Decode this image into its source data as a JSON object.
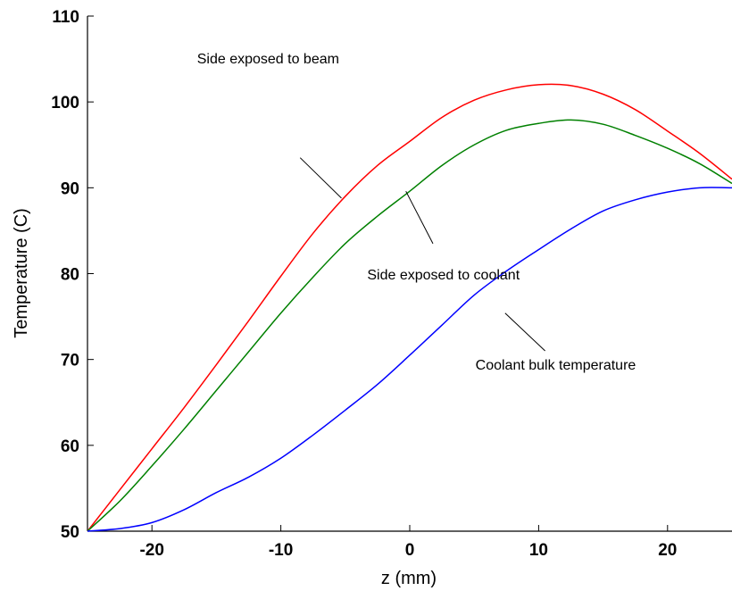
{
  "chart_data": {
    "type": "line",
    "title": "",
    "xlabel": "z (mm)",
    "ylabel": "Temperature (C)",
    "xlim": [
      -25,
      25
    ],
    "ylim": [
      50,
      110
    ],
    "xticks": [
      -20,
      -10,
      0,
      10,
      20
    ],
    "yticks": [
      50,
      60,
      70,
      80,
      90,
      100,
      110
    ],
    "grid": false,
    "legend": "none",
    "series": [
      {
        "color": "#ff0000",
        "x": [
          -25,
          -22.5,
          -20,
          -17.5,
          -15,
          -12.5,
          -10,
          -7.5,
          -5,
          -2.5,
          0,
          2.5,
          5,
          7.5,
          10,
          12.5,
          15,
          17.5,
          20,
          22.5,
          25
        ],
        "y": [
          50.0,
          54.8,
          59.6,
          64.4,
          69.4,
          74.5,
          79.7,
          84.7,
          89.0,
          92.6,
          95.4,
          98.2,
          100.2,
          101.4,
          102.0,
          101.9,
          100.9,
          99.1,
          96.6,
          94.0,
          91.0
        ]
      },
      {
        "color": "#008000",
        "x": [
          -25,
          -22.5,
          -20,
          -17.5,
          -15,
          -12.5,
          -10,
          -7.5,
          -5,
          -2.5,
          0,
          2.5,
          5,
          7.5,
          10,
          12.5,
          15,
          17.5,
          20,
          22.5,
          25
        ],
        "y": [
          50.0,
          53.5,
          57.6,
          61.9,
          66.4,
          70.9,
          75.4,
          79.6,
          83.5,
          86.7,
          89.6,
          92.6,
          95.0,
          96.7,
          97.5,
          97.9,
          97.4,
          96.1,
          94.6,
          92.8,
          90.5
        ]
      },
      {
        "color": "#0000ff",
        "x": [
          -25,
          -22.5,
          -20,
          -17.5,
          -15,
          -12.5,
          -10,
          -7.5,
          -5,
          -2.5,
          0,
          2.5,
          5,
          7.5,
          10,
          12.5,
          15,
          17.5,
          20,
          22.5,
          25
        ],
        "y": [
          50.0,
          50.3,
          51.0,
          52.5,
          54.5,
          56.3,
          58.5,
          61.2,
          64.1,
          67.1,
          70.5,
          74.0,
          77.5,
          80.3,
          82.8,
          85.2,
          87.3,
          88.6,
          89.5,
          90.0,
          90.0
        ]
      }
    ],
    "annotations": [
      {
        "text": "Side exposed to beam",
        "x": -16.5,
        "y": 104.5,
        "pointer_from": [
          -8.5,
          93.5
        ],
        "pointer_to": [
          -5.3,
          88.8
        ]
      },
      {
        "text": "Side exposed to coolant",
        "x": -3.3,
        "y": 79.3,
        "pointer_from": [
          1.8,
          83.5
        ],
        "pointer_to": [
          -0.3,
          89.6
        ]
      },
      {
        "text": "Coolant bulk temperature",
        "x": 5.1,
        "y": 68.8,
        "pointer_from": [
          10.5,
          71.0
        ],
        "pointer_to": [
          7.4,
          75.4
        ]
      }
    ]
  }
}
